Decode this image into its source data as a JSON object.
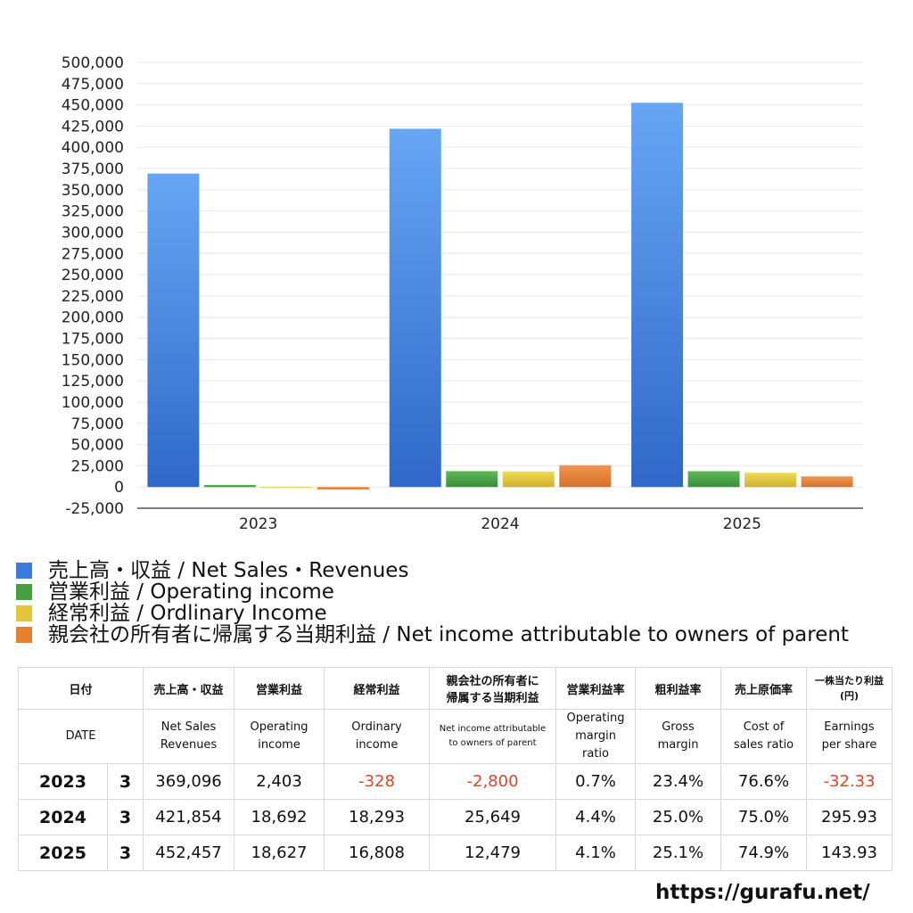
{
  "chart_data": {
    "type": "bar",
    "categories": [
      "2023",
      "2024",
      "2025"
    ],
    "series": [
      {
        "name": "売上高・収益 / Net Sales・Revenues",
        "values": [
          369096,
          421854,
          452457
        ],
        "color_top": "#66a6f4",
        "color_bottom": "#2f68c8"
      },
      {
        "name": "営業利益 / Operating income",
        "values": [
          2403,
          18692,
          18627
        ],
        "color_top": "#5eb957",
        "color_bottom": "#3a8f37"
      },
      {
        "name": "経常利益 / Ordlinary Income",
        "values": [
          -328,
          18293,
          16808
        ],
        "color_top": "#eedc56",
        "color_bottom": "#d1b02d"
      },
      {
        "name": "親会社の所有者に帰属する当期利益 / Net income attributable to owners of parent",
        "values": [
          -2800,
          25649,
          12479
        ],
        "color_top": "#ef9650",
        "color_bottom": "#d8702a"
      }
    ],
    "ylim": [
      -25000,
      500000
    ],
    "ytick_step": 25000,
    "yticks": [
      "500,000",
      "475,000",
      "450,000",
      "425,000",
      "400,000",
      "375,000",
      "350,000",
      "325,000",
      "300,000",
      "275,000",
      "250,000",
      "225,000",
      "200,000",
      "175,000",
      "150,000",
      "125,000",
      "100,000",
      "75,000",
      "50,000",
      "25,000",
      "0",
      "-25,000"
    ],
    "grid": true,
    "xlabel": "",
    "ylabel": "",
    "title": ""
  },
  "legend": [
    {
      "label": "売上高・収益 / Net Sales・Revenues",
      "color": "#3b7be0"
    },
    {
      "label": "営業利益 / Operating income",
      "color": "#46a043"
    },
    {
      "label": "経常利益 / Ordlinary Income",
      "color": "#e1c63c"
    },
    {
      "label": "親会社の所有者に帰属する当期利益 / Net income attributable to owners of parent",
      "color": "#e38032"
    }
  ],
  "table": {
    "header_jp": {
      "date": "日付",
      "sales": "売上高・収益",
      "op": "営業利益",
      "ord": "経常利益",
      "ni_line1": "親会社の所有者に",
      "ni_line2": "帰属する当期利益",
      "opm": "営業利益率",
      "gm": "粗利益率",
      "cos": "売上原価率",
      "eps_line1": "一株当たり利益",
      "eps_line2": "(円)"
    },
    "header_en": {
      "date": "DATE",
      "sales_1": "Net Sales",
      "sales_2": "Revenues",
      "op_1": "Operating",
      "op_2": "income",
      "ord_1": "Ordinary",
      "ord_2": "income",
      "ni_1": "Net income attributable",
      "ni_2": "to owners of parent",
      "opm_1": "Operating",
      "opm_2": "margin",
      "opm_3": "ratio",
      "gm_1": "Gross",
      "gm_2": "margin",
      "cos_1": "Cost of",
      "cos_2": "sales ratio",
      "eps_1": "Earnings",
      "eps_2": "per share"
    },
    "rows": [
      {
        "year": "2023",
        "month": "3",
        "sales": "369,096",
        "op": "2,403",
        "ord": "-328",
        "ni": "-2,800",
        "opm": "0.7%",
        "gm": "23.4%",
        "cos": "76.6%",
        "eps": "-32.33"
      },
      {
        "year": "2024",
        "month": "3",
        "sales": "421,854",
        "op": "18,692",
        "ord": "18,293",
        "ni": "25,649",
        "opm": "4.4%",
        "gm": "25.0%",
        "cos": "75.0%",
        "eps": "295.93"
      },
      {
        "year": "2025",
        "month": "3",
        "sales": "452,457",
        "op": "18,627",
        "ord": "16,808",
        "ni": "12,479",
        "opm": "4.1%",
        "gm": "25.1%",
        "cos": "74.9%",
        "eps": "143.93"
      }
    ]
  },
  "footer": {
    "url": "https://gurafu.net/"
  }
}
